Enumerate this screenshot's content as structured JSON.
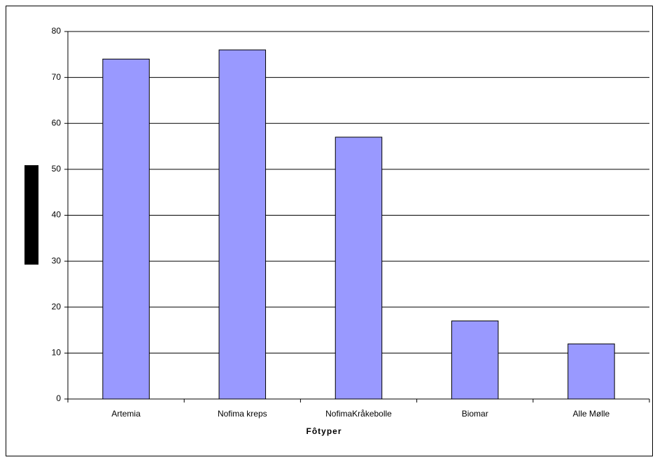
{
  "chart_data": {
    "type": "bar",
    "x_label": "Fôtyper",
    "categories": [
      "Artemia",
      "Nofima kreps",
      "NofimaKråkebolle",
      "Biomar",
      "Alle Mølle"
    ],
    "values": [
      74,
      76,
      57,
      17,
      12
    ],
    "color": "#9999ff",
    "ylim": [
      0,
      80
    ],
    "yticks": [
      0,
      10,
      20,
      30,
      40,
      50,
      60,
      70,
      80
    ],
    "grid": true
  }
}
